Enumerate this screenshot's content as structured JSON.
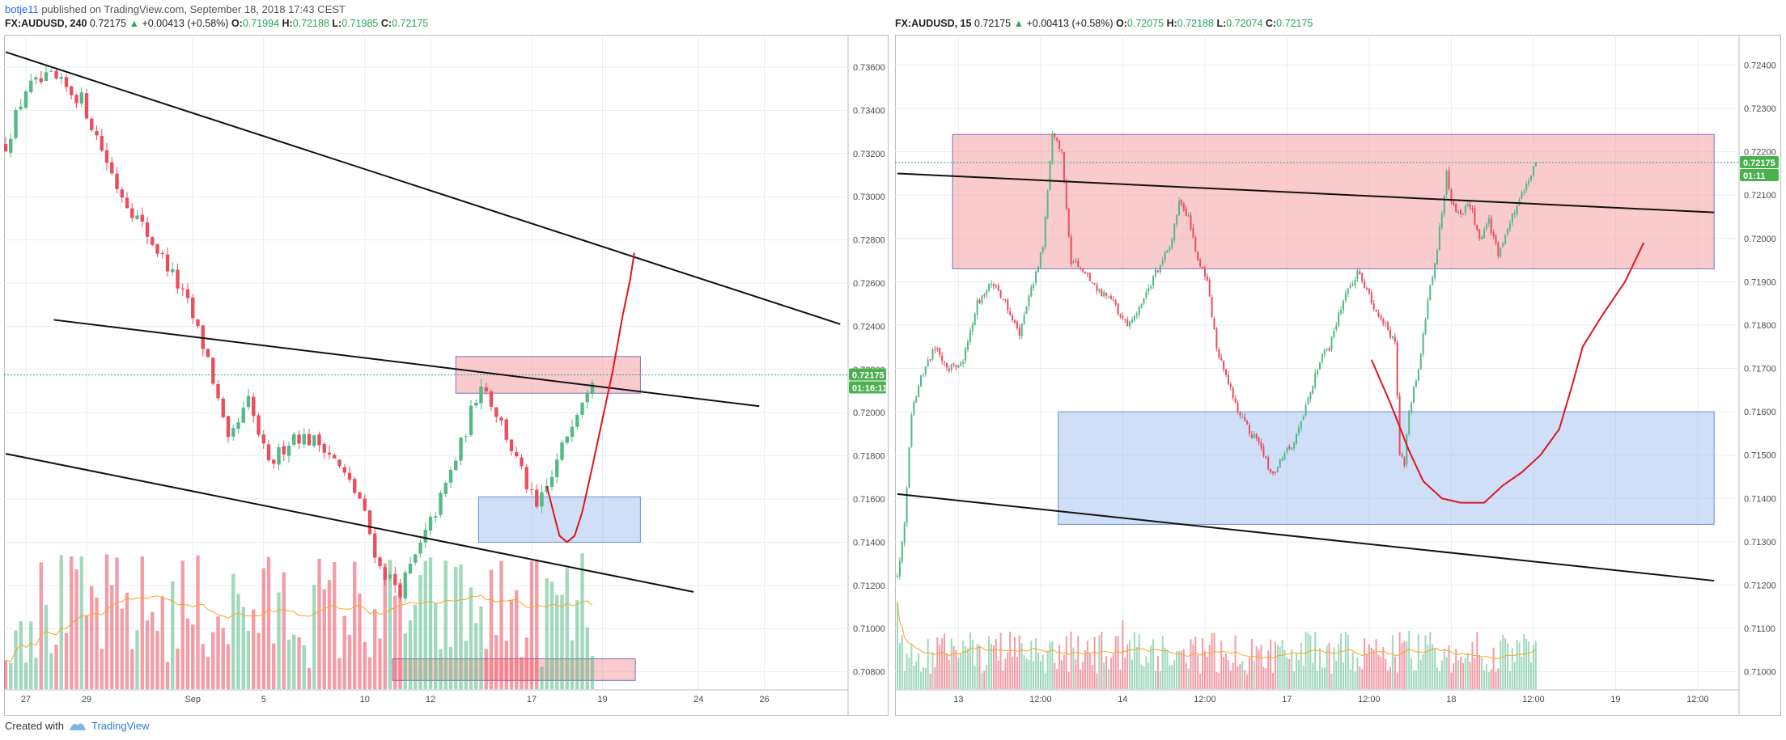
{
  "header": {
    "author": "botje11",
    "published_text": "published on TradingView.com, September 18, 2018 17:43 CEST"
  },
  "footer": {
    "created_with": "Created with",
    "brand": "TradingView"
  },
  "colors": {
    "up": "#53b987",
    "down": "#eb4d5c",
    "grid": "#e9eef2",
    "zone_red": "#f6a1a4",
    "zone_blue": "#a6c4f0",
    "drawing_red": "#e0161b"
  },
  "chart_data": [
    {
      "type": "candlestick",
      "symbol": "FX:AUDUSD",
      "interval": "240",
      "legend": {
        "symbol": "FX:AUDUSD, 240",
        "last": "0.72175",
        "change": "+0.00413 (+0.58%)",
        "o_label": "O:",
        "o": "0.71994",
        "h_label": "H:",
        "h": "0.72188",
        "l_label": "L:",
        "l": "0.71985",
        "c_label": "C:",
        "c": "0.72175"
      },
      "yaxis": {
        "min": 0.7072,
        "max": 0.7375,
        "ticks": [
          "0.73600",
          "0.73400",
          "0.73200",
          "0.73000",
          "0.72800",
          "0.72600",
          "0.72400",
          "0.72200",
          "0.72000",
          "0.71800",
          "0.71600",
          "0.71400",
          "0.71200",
          "0.71000",
          "0.70800"
        ],
        "tick_values": [
          0.736,
          0.734,
          0.732,
          0.73,
          0.728,
          0.726,
          0.724,
          0.722,
          0.72,
          0.718,
          0.716,
          0.714,
          0.712,
          0.71,
          0.708
        ]
      },
      "xaxis": {
        "labels": [
          "27",
          "29",
          "Sep",
          "5",
          "10",
          "12",
          "17",
          "19",
          "24",
          "26"
        ],
        "label_index": [
          4,
          16,
          37,
          51,
          71,
          84,
          104,
          118,
          137,
          150
        ]
      },
      "last_price_label": "0.72175",
      "countdown_label": "01:16:11",
      "last_price": 0.72175,
      "close_path": [
        [
          0,
          0.7324
        ],
        [
          4,
          0.735
        ],
        [
          9,
          0.7355
        ],
        [
          15,
          0.7345
        ],
        [
          22,
          0.7305
        ],
        [
          26,
          0.729
        ],
        [
          32,
          0.7268
        ],
        [
          36,
          0.725
        ],
        [
          40,
          0.7225
        ],
        [
          44,
          0.7185
        ],
        [
          48,
          0.7205
        ],
        [
          52,
          0.7175
        ],
        [
          57,
          0.719
        ],
        [
          63,
          0.7185
        ],
        [
          70,
          0.716
        ],
        [
          74,
          0.7128
        ],
        [
          78,
          0.7118
        ],
        [
          82,
          0.7138
        ],
        [
          86,
          0.716
        ],
        [
          90,
          0.7185
        ],
        [
          94,
          0.7215
        ],
        [
          98,
          0.7195
        ],
        [
          102,
          0.7172
        ],
        [
          105,
          0.7155
        ],
        [
          108,
          0.717
        ],
        [
          112,
          0.7197
        ],
        [
          116,
          0.72175
        ]
      ],
      "volume_max": 100,
      "zones": [
        {
          "color": "red",
          "x0": 89.0,
          "x1": 125.5,
          "y0": 0.7209,
          "y1": 0.7226
        },
        {
          "color": "blue",
          "x0": 93.5,
          "x1": 125.5,
          "y0": 0.714,
          "y1": 0.7161
        },
        {
          "color": "red",
          "x0": 76.5,
          "x1": 124.5,
          "y0": 0.7076,
          "y1": 0.7086
        }
      ],
      "trendlines": [
        {
          "x0": 0,
          "y0": 0.7367,
          "x1": 165,
          "y1": 0.7241
        },
        {
          "x0": 9.5,
          "y0": 0.7243,
          "x1": 149,
          "y1": 0.7203
        },
        {
          "x0": 0,
          "y0": 0.7181,
          "x1": 136,
          "y1": 0.7117
        }
      ],
      "drawing": [
        [
          107,
          0.7166
        ],
        [
          108.5,
          0.7152
        ],
        [
          109.5,
          0.7143
        ],
        [
          111,
          0.714
        ],
        [
          112.5,
          0.7143
        ],
        [
          114,
          0.7154
        ],
        [
          116,
          0.7175
        ],
        [
          118,
          0.7197
        ],
        [
          120,
          0.7219
        ],
        [
          122,
          0.7245
        ],
        [
          123.5,
          0.7262
        ],
        [
          124.3,
          0.7274
        ]
      ]
    },
    {
      "type": "candlestick",
      "symbol": "FX:AUDUSD",
      "interval": "15",
      "legend": {
        "symbol": "FX:AUDUSD, 15",
        "last": "0.72175",
        "change": "+0.00413 (+0.58%)",
        "o_label": "O:",
        "o": "0.72075",
        "h_label": "H:",
        "h": "0.72188",
        "l_label": "L:",
        "l": "0.72074",
        "c_label": "C:",
        "c": "0.72175"
      },
      "yaxis": {
        "min": 0.7096,
        "max": 0.7247,
        "ticks": [
          "0.72400",
          "0.72300",
          "0.72200",
          "0.72100",
          "0.72000",
          "0.71900",
          "0.71800",
          "0.71700",
          "0.71600",
          "0.71500",
          "0.71400",
          "0.71300",
          "0.71200",
          "0.71100",
          "0.71000"
        ],
        "tick_values": [
          0.724,
          0.723,
          0.722,
          0.721,
          0.72,
          0.719,
          0.718,
          0.717,
          0.716,
          0.715,
          0.714,
          0.713,
          0.712,
          0.711,
          0.71
        ]
      },
      "xaxis": {
        "labels": [
          "13",
          "12:00",
          "14",
          "12:00",
          "17",
          "12:00",
          "18",
          "12:00",
          "19",
          "12:00"
        ],
        "label_index": [
          26,
          61,
          96,
          131,
          166,
          201,
          236,
          271,
          306,
          341
        ]
      },
      "last_price_label": "0.72175",
      "countdown_label": "01:11",
      "last_price": 0.72175,
      "close_path": [
        [
          0,
          0.7122
        ],
        [
          3,
          0.7135
        ],
        [
          6,
          0.716
        ],
        [
          10,
          0.7168
        ],
        [
          16,
          0.7175
        ],
        [
          22,
          0.717
        ],
        [
          28,
          0.7172
        ],
        [
          34,
          0.7185
        ],
        [
          40,
          0.719
        ],
        [
          46,
          0.7185
        ],
        [
          52,
          0.7178
        ],
        [
          58,
          0.719
        ],
        [
          62,
          0.7198
        ],
        [
          66,
          0.7225
        ],
        [
          70,
          0.722
        ],
        [
          74,
          0.7195
        ],
        [
          80,
          0.7192
        ],
        [
          86,
          0.7188
        ],
        [
          92,
          0.7185
        ],
        [
          98,
          0.718
        ],
        [
          104,
          0.7185
        ],
        [
          110,
          0.7192
        ],
        [
          116,
          0.7198
        ],
        [
          120,
          0.7208
        ],
        [
          124,
          0.7205
        ],
        [
          128,
          0.7195
        ],
        [
          132,
          0.719
        ],
        [
          136,
          0.7175
        ],
        [
          140,
          0.7168
        ],
        [
          144,
          0.7162
        ],
        [
          148,
          0.7157
        ],
        [
          152,
          0.7154
        ],
        [
          156,
          0.715
        ],
        [
          160,
          0.7145
        ],
        [
          164,
          0.715
        ],
        [
          168,
          0.7152
        ],
        [
          172,
          0.7157
        ],
        [
          176,
          0.7165
        ],
        [
          180,
          0.7172
        ],
        [
          184,
          0.7175
        ],
        [
          188,
          0.7182
        ],
        [
          192,
          0.7188
        ],
        [
          196,
          0.7192
        ],
        [
          200,
          0.7188
        ],
        [
          204,
          0.7183
        ],
        [
          208,
          0.718
        ],
        [
          212,
          0.7176
        ],
        [
          214,
          0.715
        ],
        [
          216,
          0.7148
        ],
        [
          218,
          0.716
        ],
        [
          222,
          0.717
        ],
        [
          226,
          0.7185
        ],
        [
          230,
          0.7198
        ],
        [
          234,
          0.7215
        ],
        [
          236,
          0.7208
        ],
        [
          240,
          0.7206
        ],
        [
          244,
          0.7208
        ],
        [
          248,
          0.72
        ],
        [
          252,
          0.7204
        ],
        [
          256,
          0.7196
        ],
        [
          260,
          0.7202
        ],
        [
          264,
          0.7208
        ],
        [
          268,
          0.7212
        ],
        [
          272,
          0.72175
        ]
      ],
      "volume_max": 100,
      "zones": [
        {
          "color": "red",
          "x0": 23.5,
          "x1": 348,
          "y0": 0.7193,
          "y1": 0.7224
        },
        {
          "color": "blue",
          "x0": 68.5,
          "x1": 348,
          "y0": 0.7134,
          "y1": 0.716
        }
      ],
      "trendlines": [
        {
          "x0": 0,
          "y0": 0.7215,
          "x1": 348,
          "y1": 0.7206
        },
        {
          "x0": 0,
          "y0": 0.7141,
          "x1": 348,
          "y1": 0.7121
        }
      ],
      "drawing": [
        [
          202,
          0.7172
        ],
        [
          210,
          0.7162
        ],
        [
          218,
          0.7151
        ],
        [
          224,
          0.7144
        ],
        [
          232,
          0.714
        ],
        [
          240,
          0.7139
        ],
        [
          250,
          0.7139
        ],
        [
          258,
          0.7143
        ],
        [
          266,
          0.7146
        ],
        [
          274,
          0.715
        ],
        [
          282,
          0.7156
        ],
        [
          288,
          0.7167
        ],
        [
          292,
          0.7175
        ],
        [
          300,
          0.7182
        ],
        [
          310,
          0.719
        ],
        [
          318,
          0.7199
        ]
      ]
    }
  ]
}
